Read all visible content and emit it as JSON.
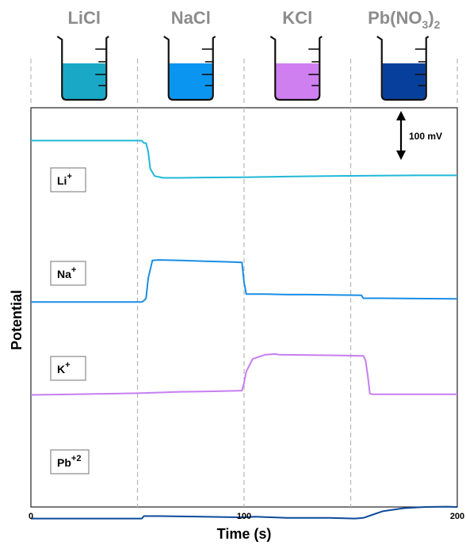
{
  "chart_data": {
    "type": "line",
    "xlabel": "Time (s)",
    "ylabel": "Potential",
    "xlim": [
      0,
      200
    ],
    "xticks": [
      "0",
      "100",
      "200"
    ],
    "section_dividers_x": [
      50,
      100,
      150,
      200
    ],
    "scale_bar_label": "100 mV",
    "salts": [
      {
        "name": "LiCl",
        "sub": "",
        "solution_color": "#19a9c7"
      },
      {
        "name": "NaCl",
        "sub": "",
        "solution_color": "#0a95f0"
      },
      {
        "name": "KCl",
        "sub": "",
        "solution_color": "#cf7ff0"
      },
      {
        "name": "Pb(NO",
        "sub": "3",
        "tail": ")",
        "sub2": "2",
        "solution_color": "#073f9c"
      }
    ],
    "series": [
      {
        "name": "Li",
        "sup": "+",
        "color": "#20b8d8",
        "points": [
          [
            0,
            128
          ],
          [
            52,
            128
          ],
          [
            53,
            124
          ],
          [
            54,
            124
          ],
          [
            55,
            110
          ],
          [
            56,
            82
          ],
          [
            58,
            70
          ],
          [
            62,
            67
          ],
          [
            70,
            67
          ],
          [
            80,
            67.5
          ],
          [
            100,
            68
          ],
          [
            120,
            69
          ],
          [
            140,
            70
          ],
          [
            160,
            70.5
          ],
          [
            180,
            71
          ],
          [
            200,
            71
          ]
        ]
      },
      {
        "name": "Na",
        "sup": "+",
        "color": "#1a8de6",
        "points": [
          [
            0,
            31
          ],
          [
            52,
            31
          ],
          [
            53,
            33
          ],
          [
            54,
            37
          ],
          [
            55,
            70
          ],
          [
            57,
            99
          ],
          [
            60,
            100
          ],
          [
            70,
            99
          ],
          [
            80,
            98
          ],
          [
            90,
            97
          ],
          [
            99,
            96
          ],
          [
            100,
            63
          ],
          [
            101,
            44
          ],
          [
            110,
            44
          ],
          [
            120,
            43
          ],
          [
            130,
            43
          ],
          [
            155,
            42
          ],
          [
            156,
            37
          ],
          [
            165,
            37
          ],
          [
            180,
            36.5
          ],
          [
            200,
            36
          ]
        ]
      },
      {
        "name": "K",
        "sup": "+",
        "color": "#c77ef0",
        "points": [
          [
            0,
            28
          ],
          [
            20,
            29
          ],
          [
            40,
            30
          ],
          [
            52,
            31
          ],
          [
            70,
            33
          ],
          [
            90,
            34
          ],
          [
            99,
            35
          ],
          [
            100,
            48
          ],
          [
            101,
            66
          ],
          [
            104,
            87
          ],
          [
            110,
            94
          ],
          [
            115,
            95
          ],
          [
            116,
            94
          ],
          [
            140,
            93
          ],
          [
            156,
            92
          ],
          [
            157,
            84
          ],
          [
            158,
            60
          ],
          [
            159,
            30
          ],
          [
            160,
            29
          ],
          [
            180,
            29
          ],
          [
            200,
            29
          ]
        ]
      },
      {
        "name": "Pb",
        "sup": "+2",
        "color": "#0c4a9c",
        "points": [
          [
            0,
            7
          ],
          [
            52,
            7
          ],
          [
            53,
            11
          ],
          [
            60,
            11
          ],
          [
            80,
            10
          ],
          [
            100,
            9
          ],
          [
            105,
            10
          ],
          [
            120,
            8
          ],
          [
            140,
            8
          ],
          [
            152,
            7
          ],
          [
            156,
            8
          ],
          [
            160,
            13
          ],
          [
            165,
            19
          ],
          [
            175,
            24
          ],
          [
            185,
            26
          ],
          [
            195,
            26.5
          ],
          [
            200,
            26
          ]
        ]
      }
    ]
  }
}
